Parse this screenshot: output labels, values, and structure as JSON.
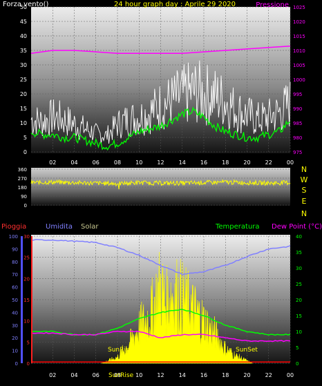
{
  "colors": {
    "wind_axis": "#ffffff",
    "pressure": "#ff00ff",
    "title": "#ffff00",
    "gust": "#ffffff",
    "avg": "#00ff00",
    "dir": "#ffff00",
    "rain": "#ff0000",
    "humidity": "#8080ff",
    "solar": "#ffff00",
    "temp": "#00ff00",
    "dew": "#ff00ff",
    "tick_white": "#ffffff",
    "tick_green": "#00ff00",
    "tick_red": "#ff3030",
    "tick_blue": "#8080ff"
  },
  "chart_data": [
    {
      "type": "line",
      "title": "24 hour graph day : Aprile 29 2020",
      "left_label": "Forza vento()",
      "right_label": "Pressione",
      "x_ticks": [
        "02",
        "04",
        "06",
        "08",
        "10",
        "12",
        "14",
        "16",
        "18",
        "20",
        "22",
        "00"
      ],
      "y_left_range": [
        0,
        50
      ],
      "y_left_ticks": [
        "0",
        "5",
        "10",
        "15",
        "20",
        "25",
        "30",
        "35",
        "40",
        "45",
        "50"
      ],
      "y_right_range": [
        975,
        1025
      ],
      "y_right_ticks": [
        "975",
        "980",
        "985",
        "990",
        "995",
        "1000",
        "1005",
        "1010",
        "1015",
        "1020",
        "1025"
      ],
      "series": [
        {
          "name": "gust",
          "x": [
            0,
            1,
            2,
            3,
            4,
            5,
            6,
            7,
            8,
            9,
            10,
            11,
            12,
            13,
            14,
            15,
            16,
            17,
            18,
            19,
            20,
            21,
            22,
            23,
            24
          ],
          "values": [
            14,
            13,
            15,
            14,
            12,
            10,
            8,
            7,
            12,
            14,
            15,
            17,
            20,
            22,
            24,
            26,
            25,
            24,
            22,
            18,
            16,
            14,
            15,
            17,
            21
          ]
        },
        {
          "name": "avg",
          "x": [
            0,
            1,
            2,
            3,
            4,
            5,
            6,
            7,
            8,
            9,
            10,
            11,
            12,
            13,
            14,
            15,
            16,
            17,
            18,
            19,
            20,
            21,
            22,
            23,
            24
          ],
          "values": [
            7,
            6,
            6,
            5,
            5,
            4,
            3,
            2,
            3,
            5,
            7,
            8,
            9,
            11,
            13,
            14,
            12,
            9,
            7,
            6,
            5,
            5,
            6,
            7,
            11
          ]
        },
        {
          "name": "pressure",
          "x": [
            0,
            2,
            4,
            6,
            8,
            10,
            12,
            14,
            16,
            18,
            20,
            22,
            24
          ],
          "values": [
            1009,
            1010,
            1010,
            1009.5,
            1009,
            1009,
            1009,
            1009,
            1009.5,
            1010,
            1010.5,
            1011,
            1011.5
          ]
        }
      ]
    },
    {
      "type": "scatter",
      "right_labels": [
        "N",
        "W",
        "S",
        "E",
        "N"
      ],
      "y_range": [
        0,
        360
      ],
      "y_ticks": [
        "0",
        "90",
        "180",
        "270",
        "360"
      ],
      "series": [
        {
          "name": "direction",
          "x": [
            0,
            2,
            4,
            6,
            8,
            10,
            12,
            14,
            16,
            18,
            20,
            22,
            24
          ],
          "values": [
            225,
            230,
            225,
            220,
            215,
            225,
            220,
            220,
            225,
            230,
            225,
            220,
            225
          ]
        }
      ]
    },
    {
      "type": "line",
      "legend": [
        "Pioggia",
        "Umidita",
        "Solar",
        "Temperatura",
        "Dew Point (°C)"
      ],
      "x_ticks": [
        "02",
        "04",
        "06",
        "08",
        "10",
        "12",
        "14",
        "16",
        "18",
        "20",
        "22",
        "00"
      ],
      "y_humidity_range": [
        0,
        100
      ],
      "y_humidity_ticks": [
        "0",
        "10",
        "20",
        "30",
        "40",
        "50",
        "60",
        "70",
        "80",
        "90",
        "100"
      ],
      "y_rain_range": [
        0,
        30
      ],
      "y_rain_ticks": [
        "0",
        "5",
        "10",
        "15",
        "20",
        "25",
        "30"
      ],
      "y_temp_range": [
        0,
        40
      ],
      "y_temp_ticks": [
        "0",
        "5",
        "10",
        "15",
        "20",
        "25",
        "30",
        "35",
        "40"
      ],
      "annotations": [
        "SunRise",
        "SunSet"
      ],
      "series": [
        {
          "name": "humidity",
          "x": [
            0,
            2,
            4,
            6,
            8,
            10,
            12,
            14,
            16,
            18,
            20,
            22,
            24
          ],
          "values": [
            97,
            97,
            96,
            95,
            91,
            85,
            77,
            70,
            72,
            77,
            84,
            90,
            92
          ]
        },
        {
          "name": "temperature",
          "x": [
            0,
            2,
            4,
            6,
            8,
            10,
            12,
            14,
            16,
            18,
            20,
            22,
            24
          ],
          "values": [
            10,
            10,
            9,
            9,
            11,
            14,
            16,
            17,
            15,
            12,
            10,
            9,
            9
          ]
        },
        {
          "name": "dew_point",
          "x": [
            0,
            2,
            4,
            6,
            8,
            10,
            12,
            14,
            16,
            18,
            20,
            22,
            24
          ],
          "values": [
            9.5,
            9.5,
            9,
            9,
            10,
            10,
            8,
            9,
            9,
            8,
            7,
            7,
            7
          ]
        },
        {
          "name": "solar",
          "x": [
            6.5,
            8,
            9,
            10,
            11,
            12,
            12.5,
            13,
            14,
            15,
            16,
            17,
            18,
            19,
            20,
            20.5
          ],
          "values": [
            0,
            5,
            15,
            30,
            40,
            65,
            50,
            60,
            55,
            45,
            35,
            25,
            12,
            6,
            2,
            0
          ]
        },
        {
          "name": "rain",
          "x": [
            0,
            24
          ],
          "values": [
            0.3,
            0.3
          ]
        }
      ]
    }
  ]
}
